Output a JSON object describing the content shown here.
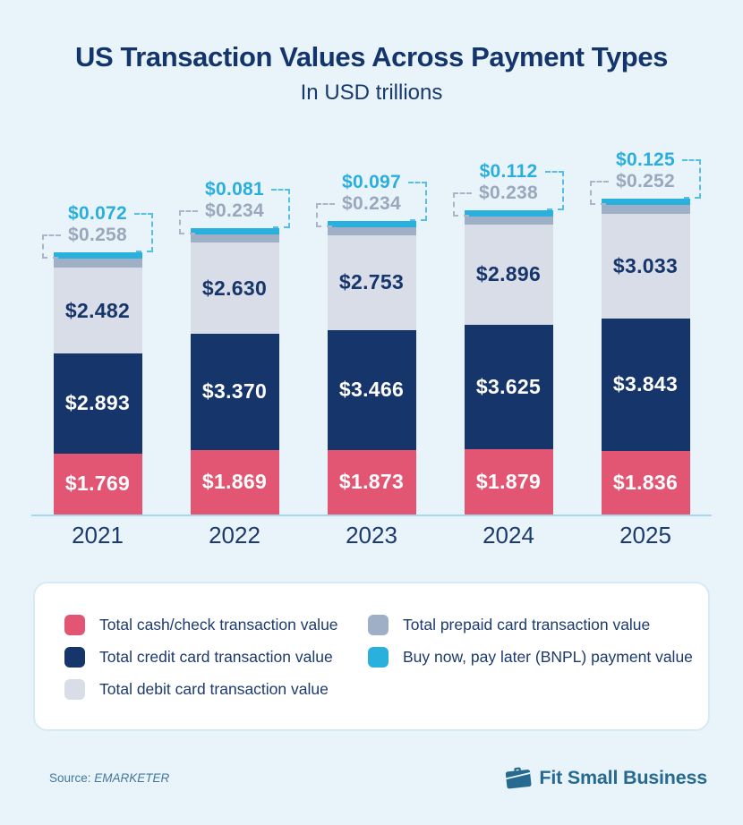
{
  "title": "US Transaction Values Across Payment Types",
  "subtitle": "In USD trillions",
  "chart_data": {
    "type": "bar",
    "stacked": true,
    "unit": "USD trillions",
    "categories": [
      "2021",
      "2022",
      "2023",
      "2024",
      "2025"
    ],
    "series": [
      {
        "id": "cash",
        "name": "Total cash/check transaction value",
        "color": "#e25674",
        "label_color": "#ffffff",
        "values": [
          1.769,
          1.869,
          1.873,
          1.879,
          1.836
        ]
      },
      {
        "id": "credit",
        "name": "Total credit card transaction value",
        "color": "#16356b",
        "label_color": "#ffffff",
        "values": [
          2.893,
          3.37,
          3.466,
          3.625,
          3.843
        ]
      },
      {
        "id": "debit",
        "name": "Total debit card transaction value",
        "color": "#d9dde8",
        "label_color": "#16356b",
        "values": [
          2.482,
          2.63,
          2.753,
          2.896,
          3.033
        ]
      },
      {
        "id": "prepaid",
        "name": "Total prepaid card transaction value",
        "color": "#9fb0c6",
        "label_color": "#9aa8bd",
        "values": [
          0.258,
          0.234,
          0.234,
          0.238,
          0.252
        ]
      },
      {
        "id": "bnpl",
        "name": "Buy now, pay later (BNPL) payment value",
        "color": "#29b0dd",
        "label_color": "#2aaede",
        "values": [
          0.072,
          0.081,
          0.097,
          0.112,
          0.125
        ]
      }
    ],
    "value_prefix": "$",
    "value_decimals": 3,
    "callout_series": [
      "bnpl",
      "prepaid"
    ],
    "axis": {
      "baseline_color": "#a5d8ec"
    },
    "legend_position": "bottom"
  },
  "legend": {
    "columns": [
      [
        "cash",
        "credit",
        "debit"
      ],
      [
        "prepaid",
        "bnpl"
      ]
    ]
  },
  "footer": {
    "source_label": "Source:",
    "source_name": "EMARKETER",
    "brand_name": "Fit Small Business"
  },
  "colors": {
    "background": "#e9f4fa",
    "title": "#14356b",
    "year_label": "#1c3a6e",
    "legend_text": "#1c3a6e",
    "legend_border": "#d6eaf5",
    "source_text": "#44779e",
    "brand": "#276a8f",
    "bnpl_connector": "#55bfe5",
    "prepaid_connector": "#aab6c8"
  }
}
